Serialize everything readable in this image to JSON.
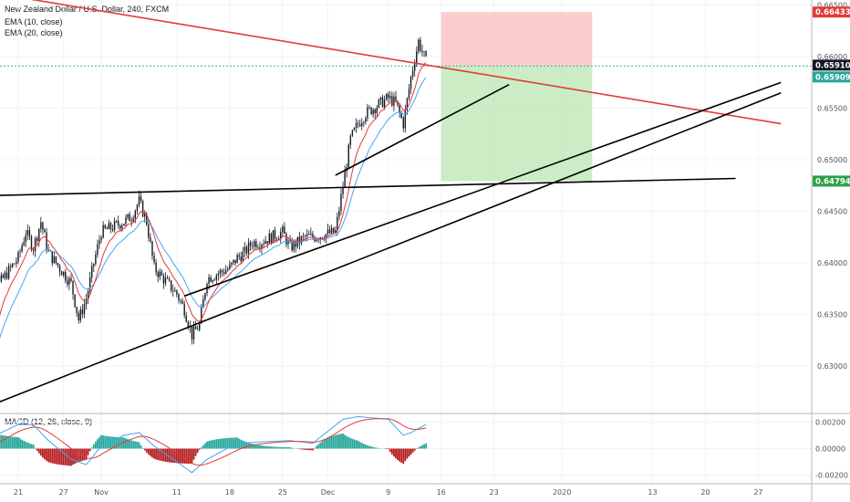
{
  "header": {
    "symbol_title": "New Zealand Dollar / U.S. Dollar, 240, FXCM",
    "ema10_label": "EMA (10, close)",
    "ema20_label": "EMA (20, close)",
    "macd_label": "MACD (12, 26, close, 9)"
  },
  "colors": {
    "candle": "#131722",
    "ema10": "#e53935",
    "ema20": "#42a5f5",
    "trendline_red": "#e53935",
    "trendline_black": "#000000",
    "stop_zone": "#f8bcbc",
    "target_zone": "#b9e6b1",
    "badge_red": "#e53935",
    "badge_teal": "#26a69a",
    "badge_green": "#2e9e46",
    "badge_dark": "#131722",
    "macd_hist_pos": "#26a69a",
    "macd_hist_neg": "#b71c1c",
    "macd_line": "#42a5f5",
    "signal_line": "#e53935"
  },
  "chart_data": [
    {
      "type": "candlestick",
      "title": "New Zealand Dollar / U.S. Dollar, 240, FXCM",
      "y_range": [
        0.6255,
        0.6655
      ],
      "y_ticks": [
        "0.66500",
        "0.66000",
        "0.65500",
        "0.65000",
        "0.64500",
        "0.64000",
        "0.63500",
        "0.63000"
      ],
      "x_ticks": [
        "21",
        "27",
        "Nov",
        "11",
        "18",
        "25",
        "Dec",
        "9",
        "16",
        "23",
        "2020",
        "13",
        "20",
        "27"
      ],
      "price_path": [
        [
          "Oct 16",
          0.6285
        ],
        [
          "Oct 17",
          0.633
        ],
        [
          "Oct 18",
          0.6375
        ],
        [
          "Oct 21",
          0.6405
        ],
        [
          "Oct 22",
          0.643
        ],
        [
          "Oct 23",
          0.6415
        ],
        [
          "Oct 24",
          0.644
        ],
        [
          "Oct 25",
          0.641
        ],
        [
          "Oct 28",
          0.638
        ],
        [
          "Oct 29",
          0.6345
        ],
        [
          "Oct 30",
          0.6365
        ],
        [
          "Oct 31",
          0.64
        ],
        [
          "Nov 1",
          0.643
        ],
        [
          "Nov 4",
          0.644
        ],
        [
          "Nov 5",
          0.6445
        ],
        [
          "Nov 6",
          0.646
        ],
        [
          "Nov 7",
          0.644
        ],
        [
          "Nov 8",
          0.6395
        ],
        [
          "Nov 11",
          0.637
        ],
        [
          "Nov 12",
          0.6355
        ],
        [
          "Nov 13",
          0.633
        ],
        [
          "Nov 14",
          0.634
        ],
        [
          "Nov 15",
          0.6385
        ],
        [
          "Nov 18",
          0.6395
        ],
        [
          "Nov 19",
          0.6405
        ],
        [
          "Nov 20",
          0.641
        ],
        [
          "Nov 21",
          0.642
        ],
        [
          "Nov 22",
          0.642
        ],
        [
          "Nov 25",
          0.643
        ],
        [
          "Nov 26",
          0.6415
        ],
        [
          "Nov 27",
          0.642
        ],
        [
          "Nov 28",
          0.6425
        ],
        [
          "Nov 29",
          0.6425
        ],
        [
          "Dec 2",
          0.643
        ],
        [
          "Dec 3",
          0.6475
        ],
        [
          "Dec 4",
          0.652
        ],
        [
          "Dec 5",
          0.6535
        ],
        [
          "Dec 6",
          0.6545
        ],
        [
          "Dec 9",
          0.656
        ],
        [
          "Dec 10",
          0.6555
        ],
        [
          "Dec 11",
          0.6535
        ],
        [
          "Dec 12",
          0.658
        ],
        [
          "Dec 13",
          0.6615
        ],
        [
          "Dec 14",
          0.6595
        ]
      ],
      "ema10_label": "EMA (10, close)",
      "ema20_label": "EMA (20, close)",
      "price_badges": [
        {
          "value": "0.66433",
          "color_key": "badge_red"
        },
        {
          "value": "0.65910",
          "color_key": "badge_dark"
        },
        {
          "value": "0.65909",
          "color_key": "badge_teal"
        },
        {
          "value": "0.64794",
          "color_key": "badge_green"
        }
      ],
      "position_tool": {
        "entry": 0.6591,
        "stop": 0.66433,
        "target": 0.64794,
        "start_date": "Dec 16",
        "end_date": "Jan 5"
      },
      "trendlines": [
        {
          "name": "descending-resistance",
          "color_key": "trendline_red",
          "start": [
            "Oct 15",
            0.6665
          ],
          "end": [
            "Jan 30",
            0.6535
          ]
        },
        {
          "name": "horizontal-support",
          "color_key": "trendline_black",
          "start": [
            "Oct 15",
            0.6465
          ],
          "end": [
            "Jan 24",
            0.6482
          ]
        },
        {
          "name": "long-uptrend-lower",
          "color_key": "trendline_black",
          "start": [
            "Oct 16",
            0.6258
          ],
          "end": [
            "Jan 30",
            0.6565
          ]
        },
        {
          "name": "long-uptrend-upper",
          "color_key": "trendline_black",
          "start": [
            "Nov 12",
            0.6368
          ],
          "end": [
            "Jan 30",
            0.6575
          ]
        },
        {
          "name": "short-uptrend",
          "color_key": "trendline_black",
          "start": [
            "Dec 2",
            0.6485
          ],
          "end": [
            "Dec 25",
            0.6573
          ]
        }
      ]
    },
    {
      "type": "macd",
      "title": "MACD (12, 26, close, 9)",
      "y_range": [
        -0.0025,
        0.0025
      ],
      "y_ticks": [
        "0.00200",
        "0.00000",
        "-0.00200"
      ],
      "macd_path": [
        [
          "Oct 16",
          -0.0002
        ],
        [
          "Oct 18",
          0.001
        ],
        [
          "Oct 21",
          0.0018
        ],
        [
          "Oct 23",
          0.0018
        ],
        [
          "Oct 25",
          0.0006
        ],
        [
          "Oct 28",
          -0.0008
        ],
        [
          "Oct 30",
          -0.0012
        ],
        [
          "Nov 1",
          0.0002
        ],
        [
          "Nov 4",
          0.001
        ],
        [
          "Nov 6",
          0.0012
        ],
        [
          "Nov 8",
          0.0002
        ],
        [
          "Nov 11",
          -0.001
        ],
        [
          "Nov 13",
          -0.0018
        ],
        [
          "Nov 15",
          -0.0008
        ],
        [
          "Nov 19",
          0.0004
        ],
        [
          "Nov 22",
          0.0005
        ],
        [
          "Nov 26",
          0.0006
        ],
        [
          "Nov 29",
          0.0004
        ],
        [
          "Dec 3",
          0.0022
        ],
        [
          "Dec 5",
          0.0024
        ],
        [
          "Dec 9",
          0.0022
        ],
        [
          "Dec 11",
          0.001
        ],
        [
          "Dec 12",
          0.0012
        ],
        [
          "Dec 14",
          0.0018
        ]
      ]
    }
  ]
}
